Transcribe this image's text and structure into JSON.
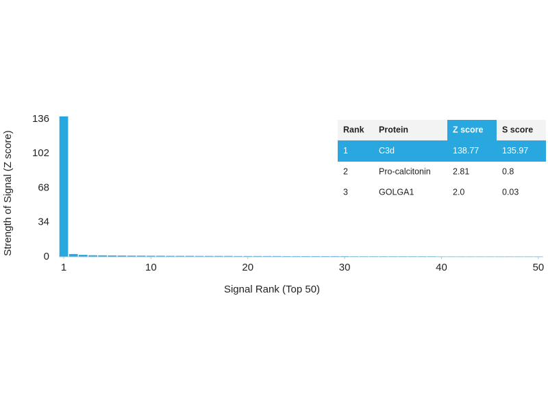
{
  "chart_data": {
    "type": "bar",
    "x_label": "Signal Rank (Top 50)",
    "y_label": "Strength of Signal (Z score)",
    "x": [
      1,
      2,
      3,
      4,
      5,
      6,
      7,
      8,
      9,
      10,
      11,
      12,
      13,
      14,
      15,
      16,
      17,
      18,
      19,
      20,
      21,
      22,
      23,
      24,
      25,
      26,
      27,
      28,
      29,
      30,
      31,
      32,
      33,
      34,
      35,
      36,
      37,
      38,
      39,
      40,
      41,
      42,
      43,
      44,
      45,
      46,
      47,
      48,
      49,
      50
    ],
    "values": [
      138.77,
      2.81,
      2.0,
      1.6,
      1.5,
      1.4,
      1.3,
      1.2,
      1.2,
      1.1,
      1.1,
      1.0,
      1.0,
      1.0,
      0.9,
      0.9,
      0.9,
      0.9,
      0.8,
      0.8,
      0.8,
      0.8,
      0.8,
      0.7,
      0.7,
      0.7,
      0.7,
      0.7,
      0.7,
      0.7,
      0.6,
      0.6,
      0.6,
      0.6,
      0.6,
      0.6,
      0.6,
      0.6,
      0.6,
      0.5,
      0.5,
      0.5,
      0.5,
      0.5,
      0.5,
      0.5,
      0.5,
      0.5,
      0.5,
      0.5
    ],
    "color": "#29a8df",
    "xlim": [
      0.5,
      50.5
    ],
    "xticks": [
      1,
      10,
      20,
      30,
      40,
      50
    ],
    "ylim": [
      0,
      136
    ],
    "yticks": [
      0,
      34,
      68,
      102,
      136
    ],
    "table": {
      "columns": [
        "Rank",
        "Protein",
        "Z score",
        "S score"
      ],
      "rows": [
        [
          "1",
          "C3d",
          "138.77",
          "135.97"
        ],
        [
          "2",
          "Pro-calcitonin",
          "2.81",
          "0.8"
        ],
        [
          "3",
          "GOLGA1",
          "2.0",
          "0.03"
        ]
      ],
      "highlight_row": 0,
      "highlight_column": 2,
      "highlight_color": "#29a8df"
    }
  }
}
